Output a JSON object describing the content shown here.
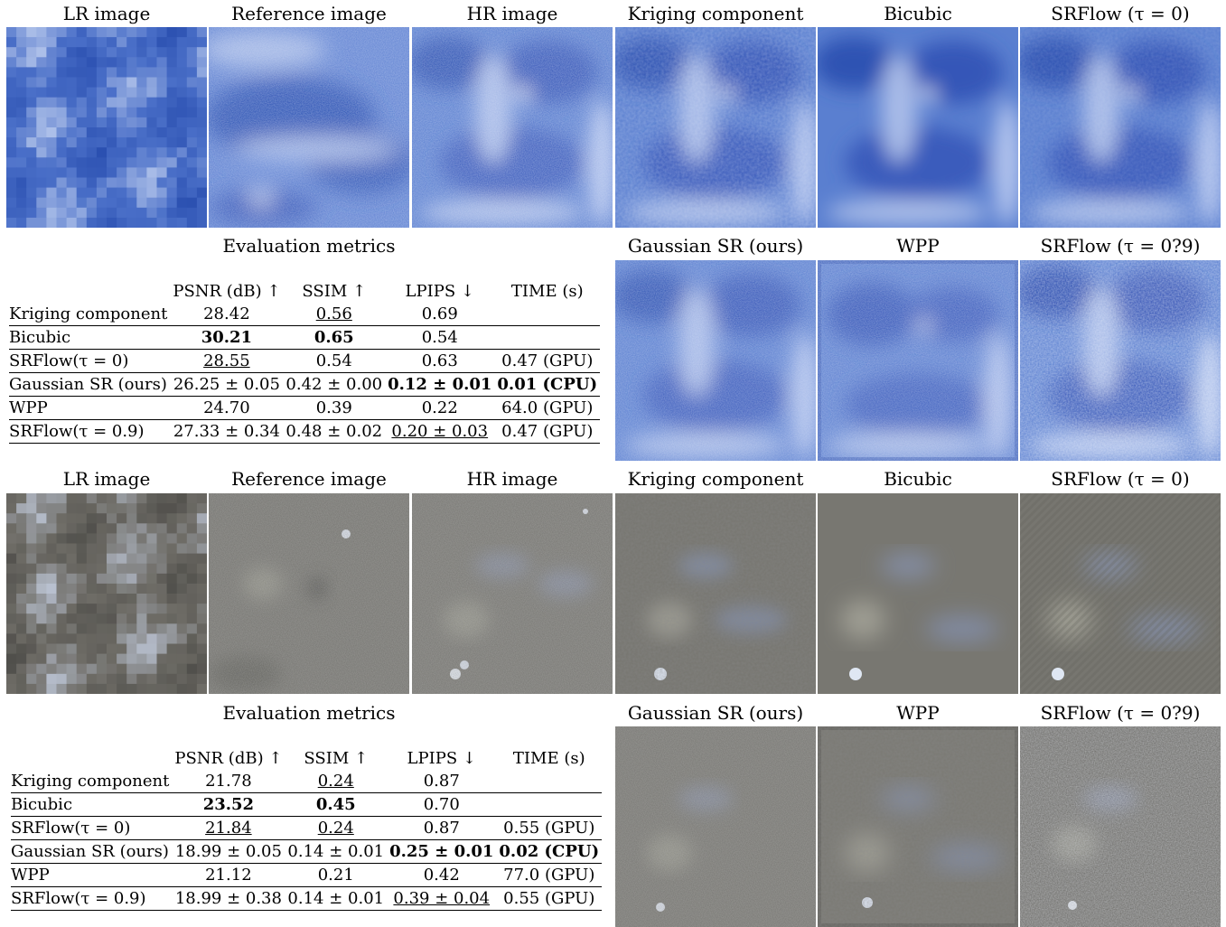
{
  "panels": [
    {
      "row1_captions": [
        "LR image",
        "Reference image",
        "HR image",
        "Kriging component",
        "Bicubic",
        "SRFlow (τ = 0)"
      ],
      "row2_captions": [
        "Gaussian SR (ours)",
        "WPP",
        "SRFlow (τ = 0?9)"
      ],
      "metrics_title": "Evaluation metrics",
      "headers": [
        "PSNR (dB) ↑",
        "SSIM ↑",
        "LPIPS ↓",
        "TIME (s)"
      ],
      "rows": [
        {
          "name": "Kriging component",
          "psnr": "28.42",
          "ssim": "0.56",
          "lpips": "0.69",
          "time": ""
        },
        {
          "name": "Bicubic",
          "psnr": "30.21",
          "ssim": "0.65",
          "lpips": "0.54",
          "time": ""
        },
        {
          "name": "SRFlow(τ = 0)",
          "psnr": "28.55",
          "ssim": "0.54",
          "lpips": "0.63",
          "time": "0.47 (GPU)"
        },
        {
          "name": "Gaussian SR (ours)",
          "psnr": "26.25 ± 0.05",
          "ssim": "0.42 ± 0.00",
          "lpips": "0.12 ± 0.01",
          "time": "0.01 (CPU)"
        },
        {
          "name": "WPP",
          "psnr": "24.70",
          "ssim": "0.39",
          "lpips": "0.22",
          "time": "64.0 (GPU)"
        },
        {
          "name": "SRFlow(τ = 0.9)",
          "psnr": "27.33 ± 0.34",
          "ssim": "0.48 ± 0.02",
          "lpips": "0.20 ± 0.03",
          "time": "0.47 (GPU)"
        }
      ],
      "image_colors": {
        "base": "#4a6fc8",
        "dark": "#2a4fb0",
        "light": "#b7c8ec"
      }
    },
    {
      "row1_captions": [
        "LR image",
        "Reference image",
        "HR image",
        "Kriging component",
        "Bicubic",
        "SRFlow (τ = 0)"
      ],
      "row2_captions": [
        "Gaussian SR (ours)",
        "WPP",
        "SRFlow (τ = 0?9)"
      ],
      "metrics_title": "Evaluation metrics",
      "headers": [
        "PSNR (dB) ↑",
        "SSIM ↑",
        "LPIPS ↓",
        "TIME (s)"
      ],
      "rows": [
        {
          "name": "Kriging component",
          "psnr": "21.78",
          "ssim": "0.24",
          "lpips": "0.87",
          "time": ""
        },
        {
          "name": "Bicubic",
          "psnr": "23.52",
          "ssim": "0.45",
          "lpips": "0.70",
          "time": ""
        },
        {
          "name": "SRFlow(τ = 0)",
          "psnr": "21.84",
          "ssim": "0.24",
          "lpips": "0.87",
          "time": "0.55 (GPU)"
        },
        {
          "name": "Gaussian SR (ours)",
          "psnr": "18.99 ± 0.05",
          "ssim": "0.14 ± 0.01",
          "lpips": "0.25 ± 0.01",
          "time": "0.02 (CPU)"
        },
        {
          "name": "WPP",
          "psnr": "21.12",
          "ssim": "0.21",
          "lpips": "0.42",
          "time": "77.0 (GPU)"
        },
        {
          "name": "SRFlow(τ = 0.9)",
          "psnr": "18.99 ± 0.38",
          "ssim": "0.14 ± 0.01",
          "lpips": "0.39 ± 0.04",
          "time": "0.55 (GPU)"
        }
      ],
      "image_colors": {
        "base": "#6e6c66",
        "dark": "#4f4e4a",
        "light": "#b8c0cf"
      }
    }
  ]
}
